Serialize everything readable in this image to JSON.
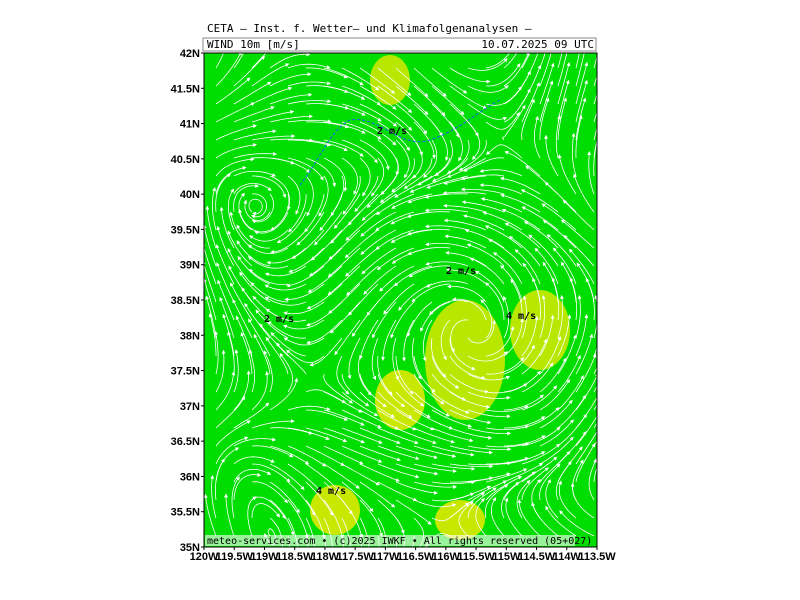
{
  "header": {
    "title": "CETA — Inst. f. Wetter— und Klimafolgenanalysen —",
    "variable": "WIND  10m  [m/s]",
    "datetime": "10.07.2025 09 UTC"
  },
  "map": {
    "lat_labels": [
      "42N",
      "41.5N",
      "41N",
      "40.5N",
      "40N",
      "39.5N",
      "39N",
      "38.5N",
      "38N",
      "37.5N",
      "37N",
      "36.5N",
      "36N",
      "35.5N",
      "35N"
    ],
    "lon_labels": [
      "120W",
      "119.5W",
      "119W",
      "118.5W",
      "118W",
      "117.5W",
      "117W",
      "116.5W",
      "116W",
      "115.5W",
      "115W",
      "114.5W",
      "114W",
      "113.5W"
    ],
    "contour_labels": [
      "2 m/s",
      "2 m/s",
      "2 m/s",
      "4 m/s",
      "4 m/s"
    ]
  },
  "footer": {
    "credit": "meteo-services.com • (c)2025 IWKF • All rights reserved (05+027)"
  }
}
